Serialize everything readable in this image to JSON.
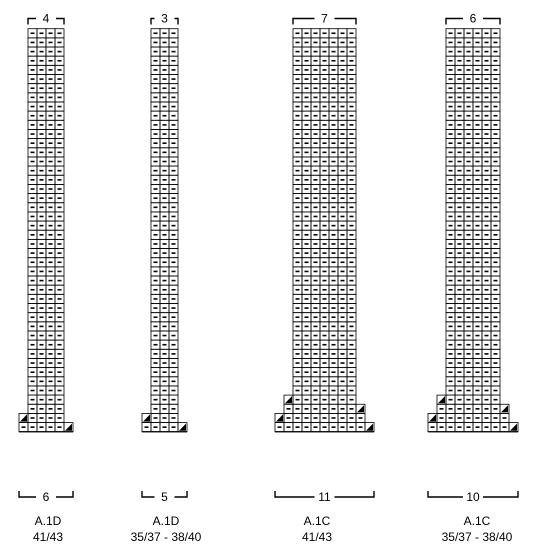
{
  "charts": [
    {
      "id": "A.1D-41/43",
      "name": "A.1D",
      "size": "41/43",
      "top_count": "4",
      "bottom_count": "6",
      "cols": 4,
      "stitch_cols": 6
    },
    {
      "id": "A.1D-35/37-38/40",
      "name": "A.1D",
      "size": "35/37 - 38/40",
      "top_count": "3",
      "bottom_count": "5",
      "cols": 3,
      "stitch_cols": 5
    },
    {
      "id": "A.1C-41/43",
      "name": "A.1C",
      "size": "41/43",
      "top_count": "7",
      "bottom_count": "11",
      "cols": 7,
      "stitch_cols": 11
    },
    {
      "id": "A.1C-35/37-38/40",
      "name": "A.1C",
      "size": "35/37 - 38/40",
      "top_count": "6",
      "bottom_count": "10",
      "cols": 6,
      "stitch_cols": 10
    }
  ],
  "symbols": {
    "stitch": "purl-dash",
    "increase": "black-triangle"
  },
  "colors": {
    "line": "#000000",
    "background": "#ffffff"
  }
}
